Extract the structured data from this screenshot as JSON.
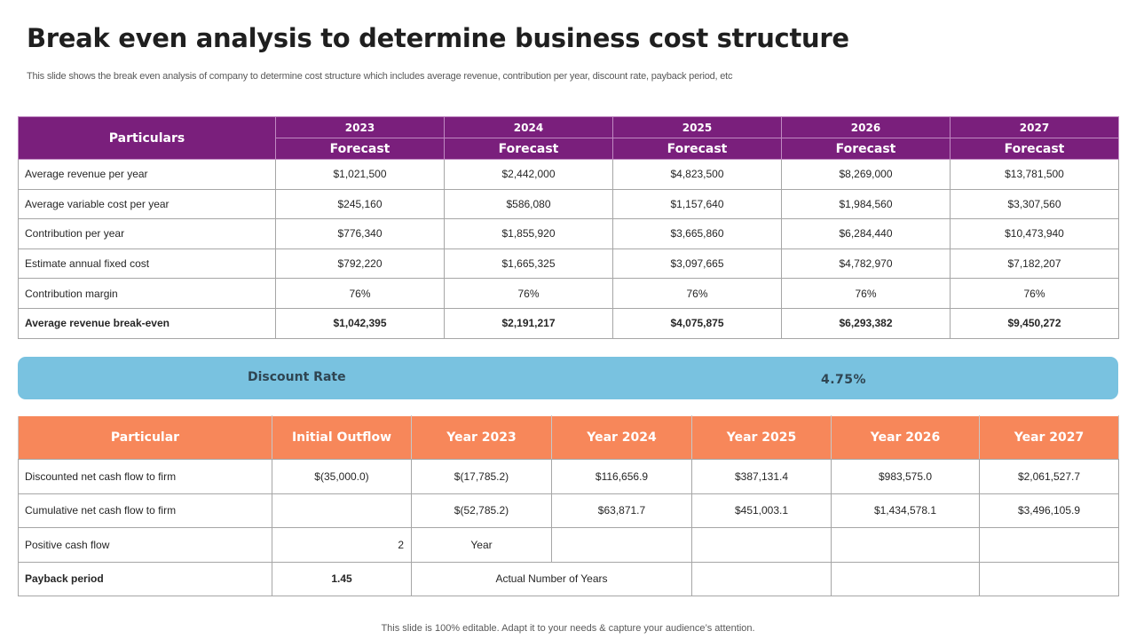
{
  "title": "Break even analysis to determine business cost structure",
  "subtitle": "This slide shows the break even analysis of company to determine cost structure which includes average revenue, contribution per year, discount rate, payback period, etc",
  "table1": {
    "header_label": "Particulars",
    "years": [
      "2023",
      "2024",
      "2025",
      "2026",
      "2027"
    ],
    "forecast_label": "Forecast",
    "rows": [
      {
        "label": "Average  revenue  per year",
        "values": [
          "$1,021,500",
          "$2,442,000",
          "$4,823,500",
          "$8,269,000",
          "$13,781,500"
        ]
      },
      {
        "label": "Average  variable  cost per year",
        "values": [
          "$245,160",
          "$586,080",
          "$1,157,640",
          "$1,984,560",
          "$3,307,560"
        ]
      },
      {
        "label": "Contribution  per year",
        "values": [
          "$776,340",
          "$1,855,920",
          "$3,665,860",
          "$6,284,440",
          "$10,473,940"
        ]
      },
      {
        "label": "Estimate annual  fixed cost",
        "values": [
          "$792,220",
          "$1,665,325",
          "$3,097,665",
          "$4,782,970",
          "$7,182,207"
        ]
      },
      {
        "label": "Contribution  margin",
        "values": [
          "76%",
          "76%",
          "76%",
          "76%",
          "76%"
        ]
      },
      {
        "label": "Average revenue break-even",
        "values": [
          "$1,042,395",
          "$2,191,217",
          "$4,075,875",
          "$6,293,382",
          "$9,450,272"
        ]
      }
    ]
  },
  "discount": {
    "label": "Discount Rate",
    "value": "4.75%"
  },
  "table2": {
    "headers": [
      "Particular",
      "Initial Outflow",
      "Year 2023",
      "Year 2024",
      "Year 2025",
      "Year 2026",
      "Year 2027"
    ],
    "row1": {
      "label": "Discounted  net cash flow to firm",
      "values": [
        "$(35,000.0)",
        "$(17,785.2)",
        "$116,656.9",
        "$387,131.4",
        "$983,575.0",
        "$2,061,527.7"
      ]
    },
    "row2": {
      "label": "Cumulative  net cash flow to firm",
      "values": [
        "",
        "$(52,785.2)",
        "$63,871.7",
        "$451,003.1",
        "$1,434,578.1",
        "$3,496,105.9"
      ]
    },
    "row3": {
      "label": "Positive cash flow",
      "value": "2",
      "unit": "Year"
    },
    "row4": {
      "label": "Payback period",
      "value": "1.45",
      "note": "Actual Number  of Years"
    }
  },
  "footer": "This slide is 100% editable. Adapt it to your needs & capture your audience’s attention."
}
